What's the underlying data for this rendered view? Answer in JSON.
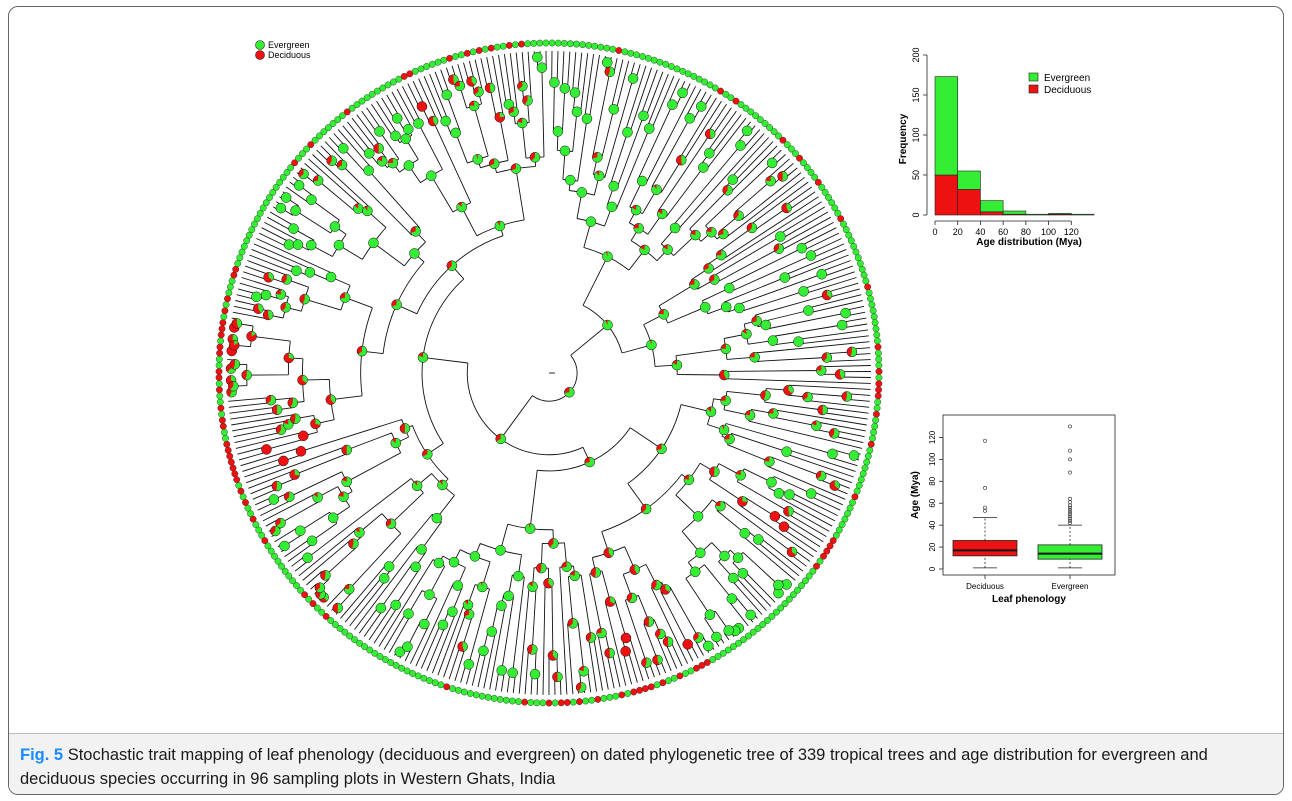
{
  "tree_legend": {
    "items": [
      {
        "label": "Evergreen",
        "color": "#33ee33"
      },
      {
        "label": "Deciduous",
        "color": "#ee1111"
      }
    ]
  },
  "colors": {
    "evergreen": "#33ee33",
    "deciduous": "#ee1111",
    "branch": "#111111"
  },
  "tree": {
    "tips": 339
  },
  "chart_data": [
    {
      "type": "bar",
      "xlabel": "Age distribution (Mya)",
      "ylabel": "Frequency",
      "categories": [
        "0-20",
        "20-40",
        "40-60",
        "60-80",
        "80-100",
        "100-120",
        "120-140"
      ],
      "series": [
        {
          "name": "Evergreen",
          "values": [
            123,
            23,
            14,
            4,
            1,
            1,
            1
          ]
        },
        {
          "name": "Deciduous",
          "values": [
            50,
            32,
            4,
            1,
            0,
            1,
            0
          ]
        }
      ],
      "stacked": true,
      "xticks": [
        "0",
        "20",
        "40",
        "60",
        "80",
        "100",
        "120"
      ],
      "yticks": [
        "0",
        "50",
        "100",
        "150",
        "200"
      ],
      "xlim": [
        0,
        140
      ],
      "ylim": [
        0,
        200
      ],
      "legend_position": "top-right"
    },
    {
      "type": "box",
      "xlabel": "Leaf phenology",
      "ylabel": "Age (Mya)",
      "categories": [
        "Deciduous",
        "Evergreen"
      ],
      "boxes": [
        {
          "name": "Deciduous",
          "whisker_low": 1,
          "q1": 12,
          "median": 17,
          "q3": 26,
          "whisker_high": 47,
          "outliers": [
            53,
            56,
            74,
            117
          ]
        },
        {
          "name": "Evergreen",
          "whisker_low": 1,
          "q1": 9,
          "median": 14,
          "q3": 22,
          "whisker_high": 40,
          "outliers": [
            42,
            44,
            46,
            48,
            50,
            52,
            54,
            56,
            58,
            61,
            64,
            88,
            100,
            108,
            130
          ]
        }
      ],
      "yticks": [
        "0",
        "20",
        "40",
        "60",
        "80",
        "100",
        "120"
      ],
      "ylim": [
        0,
        135
      ],
      "grid": false
    }
  ],
  "caption": {
    "label": "Fig. 5",
    "text": "Stochastic trait mapping of leaf phenology (deciduous and evergreen) on dated phylogenetic tree of 339 tropical trees and age distribution for evergreen and deciduous species occurring in 96 sampling plots in Western Ghats, India"
  }
}
